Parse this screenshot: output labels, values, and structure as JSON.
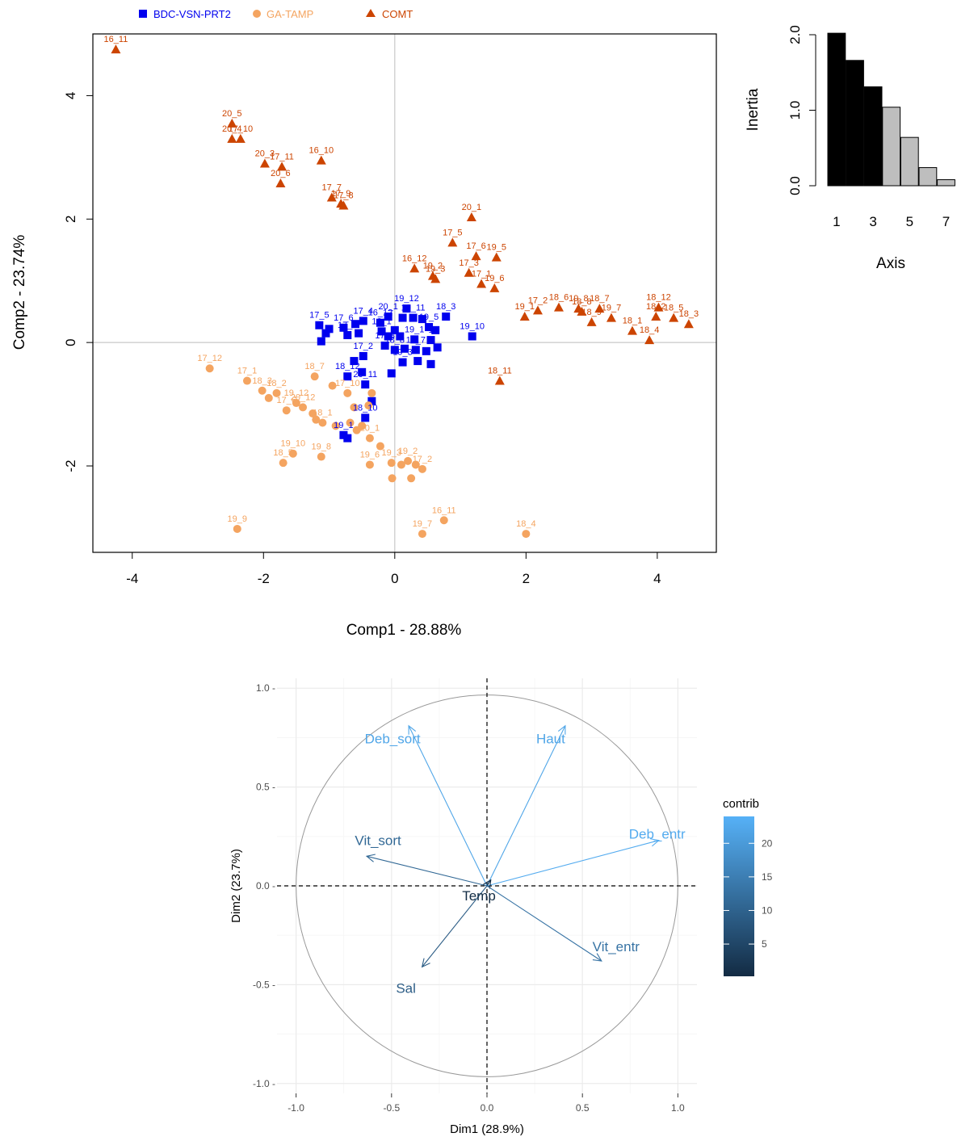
{
  "colors": {
    "BDC": "#0000ee",
    "GA": "#f4a460",
    "COMT": "#cc4400",
    "axis": "#000000",
    "refline": "#c8c8c8",
    "grid_major": "#ebebeb",
    "grid_minor": "#f5f5f5",
    "circle": "#999999",
    "scree_black": "#000000",
    "scree_grey": "#bebebe",
    "contrib_low": "#132b43",
    "contrib_high": "#56b1f7"
  },
  "chart_data": [
    {
      "id": "individuals",
      "type": "scatter",
      "title": "",
      "xlabel": "Comp1 - 28.88%",
      "ylabel": "Comp2 - 23.74%",
      "xlim": [
        -4.6,
        4.9
      ],
      "ylim": [
        -3.4,
        5.0
      ],
      "xticks": [
        -4,
        -2,
        0,
        2,
        4
      ],
      "yticks": [
        -2,
        0,
        2,
        4
      ],
      "xtick_labels": [
        "-4",
        "-2",
        "0",
        "2",
        "4"
      ],
      "ytick_labels": [
        "-2",
        "0",
        "2",
        "4"
      ],
      "legend": {
        "position": "top-left",
        "entries": [
          {
            "name": "BDC-VSN-PRT2",
            "marker": "square",
            "color_key": "BDC"
          },
          {
            "name": "GA-TAMP",
            "marker": "circle",
            "color_key": "GA"
          },
          {
            "name": "COMT",
            "marker": "triangle",
            "color_key": "COMT"
          }
        ]
      },
      "series": [
        {
          "name": "COMT",
          "marker": "triangle",
          "color_key": "COMT",
          "points": [
            {
              "x": -4.25,
              "y": 4.75,
              "label": "16_11"
            },
            {
              "x": -2.48,
              "y": 3.55,
              "label": "20_5"
            },
            {
              "x": -2.48,
              "y": 3.3,
              "label": "20_4"
            },
            {
              "x": -2.35,
              "y": 3.3,
              "label": "17_10"
            },
            {
              "x": -1.98,
              "y": 2.9,
              "label": "20_3"
            },
            {
              "x": -1.72,
              "y": 2.85,
              "label": "17_11"
            },
            {
              "x": -1.74,
              "y": 2.58,
              "label": "20_6"
            },
            {
              "x": -1.12,
              "y": 2.95,
              "label": "16_10"
            },
            {
              "x": -0.96,
              "y": 2.35,
              "label": "17_7"
            },
            {
              "x": -0.82,
              "y": 2.25,
              "label": "17_9"
            },
            {
              "x": -0.78,
              "y": 2.22,
              "label": "17_8"
            },
            {
              "x": 1.17,
              "y": 2.03,
              "label": "20_1"
            },
            {
              "x": 0.88,
              "y": 1.62,
              "label": "17_5"
            },
            {
              "x": 1.24,
              "y": 1.4,
              "label": "17_6"
            },
            {
              "x": 1.55,
              "y": 1.38,
              "label": "19_5"
            },
            {
              "x": 0.3,
              "y": 1.2,
              "label": "16_12"
            },
            {
              "x": 0.58,
              "y": 1.08,
              "label": "19_2"
            },
            {
              "x": 0.62,
              "y": 1.03,
              "label": "19_3"
            },
            {
              "x": 1.13,
              "y": 1.13,
              "label": "17_3"
            },
            {
              "x": 1.32,
              "y": 0.95,
              "label": "17_1"
            },
            {
              "x": 1.52,
              "y": 0.88,
              "label": "19_6"
            },
            {
              "x": 1.98,
              "y": 0.42,
              "label": "19_1"
            },
            {
              "x": 2.18,
              "y": 0.52,
              "label": "17_2"
            },
            {
              "x": 2.5,
              "y": 0.57,
              "label": "18_6"
            },
            {
              "x": 2.8,
              "y": 0.55,
              "label": "19_8"
            },
            {
              "x": 2.85,
              "y": 0.5,
              "label": "18_8"
            },
            {
              "x": 3.12,
              "y": 0.55,
              "label": "18_7"
            },
            {
              "x": 3.0,
              "y": 0.33,
              "label": "18_9"
            },
            {
              "x": 3.3,
              "y": 0.4,
              "label": "19_7"
            },
            {
              "x": 3.62,
              "y": 0.19,
              "label": "18_1"
            },
            {
              "x": 4.02,
              "y": 0.57,
              "label": "18_12"
            },
            {
              "x": 3.98,
              "y": 0.42,
              "label": "18_2"
            },
            {
              "x": 4.25,
              "y": 0.4,
              "label": "18_5"
            },
            {
              "x": 4.48,
              "y": 0.3,
              "label": "18_3"
            },
            {
              "x": 3.88,
              "y": 0.04,
              "label": "18_4"
            },
            {
              "x": 1.6,
              "y": -0.62,
              "label": "18_11"
            }
          ]
        },
        {
          "name": "BDC-VSN-PRT2",
          "marker": "square",
          "color_key": "BDC",
          "points": [
            {
              "x": 0.18,
              "y": 0.55,
              "label": "19_12"
            },
            {
              "x": -0.48,
              "y": 0.35,
              "label": "17_4"
            },
            {
              "x": -0.22,
              "y": 0.32,
              "label": "16_12"
            },
            {
              "x": -0.6,
              "y": 0.3,
              "label": ""
            },
            {
              "x": -1.15,
              "y": 0.28,
              "label": "17_5"
            },
            {
              "x": -0.78,
              "y": 0.24,
              "label": "17_6"
            },
            {
              "x": -1.0,
              "y": 0.22,
              "label": ""
            },
            {
              "x": -0.72,
              "y": 0.12,
              "label": "17_1"
            },
            {
              "x": -1.05,
              "y": 0.15,
              "label": ""
            },
            {
              "x": -1.12,
              "y": 0.02,
              "label": ""
            },
            {
              "x": -0.55,
              "y": 0.15,
              "label": ""
            },
            {
              "x": -0.1,
              "y": 0.42,
              "label": "20_1"
            },
            {
              "x": 0.12,
              "y": 0.4,
              "label": ""
            },
            {
              "x": 0.28,
              "y": 0.4,
              "label": "19_11"
            },
            {
              "x": 0.42,
              "y": 0.38,
              "label": ""
            },
            {
              "x": 0.78,
              "y": 0.42,
              "label": "18_3"
            },
            {
              "x": 0.52,
              "y": 0.25,
              "label": "19_5"
            },
            {
              "x": 0.62,
              "y": 0.2,
              "label": ""
            },
            {
              "x": -0.2,
              "y": 0.18,
              "label": "16_1"
            },
            {
              "x": 0.0,
              "y": 0.2,
              "label": ""
            },
            {
              "x": -0.1,
              "y": 0.1,
              "label": ""
            },
            {
              "x": 0.08,
              "y": 0.1,
              "label": ""
            },
            {
              "x": 0.3,
              "y": 0.05,
              "label": "19_1"
            },
            {
              "x": 0.55,
              "y": 0.04,
              "label": "1"
            },
            {
              "x": 1.18,
              "y": 0.1,
              "label": "19_10"
            },
            {
              "x": -0.15,
              "y": -0.05,
              "label": "17_3"
            },
            {
              "x": 0.0,
              "y": -0.12,
              "label": "18_8"
            },
            {
              "x": 0.15,
              "y": -0.1,
              "label": ""
            },
            {
              "x": 0.32,
              "y": -0.12,
              "label": "18_7"
            },
            {
              "x": 0.48,
              "y": -0.14,
              "label": ""
            },
            {
              "x": 0.65,
              "y": -0.08,
              "label": ""
            },
            {
              "x": -0.48,
              "y": -0.22,
              "label": "17_2"
            },
            {
              "x": -0.62,
              "y": -0.3,
              "label": ""
            },
            {
              "x": 0.12,
              "y": -0.32,
              "label": "19_3"
            },
            {
              "x": 0.35,
              "y": -0.3,
              "label": ""
            },
            {
              "x": 0.55,
              "y": -0.35,
              "label": ""
            },
            {
              "x": -0.05,
              "y": -0.5,
              "label": ""
            },
            {
              "x": -0.72,
              "y": -0.55,
              "label": "18_12"
            },
            {
              "x": -0.5,
              "y": -0.48,
              "label": ""
            },
            {
              "x": -0.45,
              "y": -0.68,
              "label": "20_11"
            },
            {
              "x": -0.35,
              "y": -0.95,
              "label": ""
            },
            {
              "x": -0.45,
              "y": -1.22,
              "label": "18_10"
            },
            {
              "x": -0.78,
              "y": -1.5,
              "label": "19_1"
            },
            {
              "x": -0.72,
              "y": -1.55,
              "label": ""
            }
          ]
        },
        {
          "name": "GA-TAMP",
          "marker": "circle",
          "color_key": "GA",
          "points": [
            {
              "x": -2.82,
              "y": -0.42,
              "label": "17_12"
            },
            {
              "x": -2.25,
              "y": -0.62,
              "label": "17_1"
            },
            {
              "x": -2.02,
              "y": -0.78,
              "label": "18_3"
            },
            {
              "x": -1.92,
              "y": -0.9,
              "label": ""
            },
            {
              "x": -1.8,
              "y": -0.82,
              "label": "18_2"
            },
            {
              "x": -1.65,
              "y": -1.1,
              "label": "17_6"
            },
            {
              "x": -1.5,
              "y": -0.98,
              "label": "19_12"
            },
            {
              "x": -1.25,
              "y": -1.15,
              "label": ""
            },
            {
              "x": -1.4,
              "y": -1.05,
              "label": "20_12"
            },
            {
              "x": -1.2,
              "y": -1.25,
              "label": ""
            },
            {
              "x": -1.1,
              "y": -1.3,
              "label": "18_1"
            },
            {
              "x": -0.9,
              "y": -1.35,
              "label": ""
            },
            {
              "x": -1.22,
              "y": -0.55,
              "label": "18_7"
            },
            {
              "x": -0.95,
              "y": -0.7,
              "label": ""
            },
            {
              "x": -0.72,
              "y": -0.82,
              "label": "17_10"
            },
            {
              "x": -0.35,
              "y": -0.82,
              "label": ""
            },
            {
              "x": -0.62,
              "y": -1.05,
              "label": ""
            },
            {
              "x": -0.4,
              "y": -1.02,
              "label": ""
            },
            {
              "x": -0.68,
              "y": -1.3,
              "label": ""
            },
            {
              "x": -0.58,
              "y": -1.42,
              "label": ""
            },
            {
              "x": -0.5,
              "y": -1.35,
              "label": ""
            },
            {
              "x": -0.38,
              "y": -1.55,
              "label": "20_1"
            },
            {
              "x": -0.22,
              "y": -1.68,
              "label": ""
            },
            {
              "x": -1.7,
              "y": -1.95,
              "label": "18_5"
            },
            {
              "x": -1.55,
              "y": -1.8,
              "label": "19_10"
            },
            {
              "x": -1.12,
              "y": -1.85,
              "label": "19_8"
            },
            {
              "x": -0.38,
              "y": -1.98,
              "label": "19_6"
            },
            {
              "x": -0.05,
              "y": -1.95,
              "label": "19_3"
            },
            {
              "x": 0.1,
              "y": -1.98,
              "label": ""
            },
            {
              "x": 0.2,
              "y": -1.92,
              "label": "19_2"
            },
            {
              "x": 0.32,
              "y": -1.98,
              "label": ""
            },
            {
              "x": 0.42,
              "y": -2.05,
              "label": "17_2"
            },
            {
              "x": 0.25,
              "y": -2.2,
              "label": ""
            },
            {
              "x": -0.04,
              "y": -2.2,
              "label": ""
            },
            {
              "x": -2.4,
              "y": -3.02,
              "label": "19_9"
            },
            {
              "x": 0.42,
              "y": -3.1,
              "label": "19_7"
            },
            {
              "x": 0.75,
              "y": -2.88,
              "label": "16_11"
            },
            {
              "x": 2.0,
              "y": -3.1,
              "label": "18_4"
            }
          ]
        }
      ]
    },
    {
      "id": "scree",
      "type": "bar",
      "title": "",
      "xlabel": "Axis",
      "ylabel": "Inertia",
      "categories": [
        "1",
        "2",
        "3",
        "4",
        "5",
        "6",
        "7"
      ],
      "values": [
        2.02,
        1.66,
        1.31,
        1.04,
        0.64,
        0.24,
        0.08
      ],
      "highlight": [
        "scree_black",
        "scree_black",
        "scree_black",
        "scree_grey",
        "scree_grey",
        "scree_grey",
        "scree_grey"
      ],
      "ylim": [
        0,
        2.0
      ],
      "yticks": [
        0.0,
        1.0,
        2.0
      ],
      "ytick_labels": [
        "0.0",
        "1.0",
        "2.0"
      ],
      "xtick_labels": [
        "1",
        "3",
        "5",
        "7"
      ]
    },
    {
      "id": "variables",
      "type": "scatter",
      "title": "",
      "xlabel": "Dim1 (28.9%)",
      "ylabel": "Dim2 (23.7%)",
      "xlim": [
        -1.1,
        1.1
      ],
      "ylim": [
        -1.05,
        1.05
      ],
      "xticks": [
        -1.0,
        -0.5,
        0.0,
        0.5,
        1.0
      ],
      "yticks": [
        -1.0,
        -0.5,
        0.0,
        0.5,
        1.0
      ],
      "xtick_labels": [
        "-1.0",
        "-0.5",
        "0.0",
        "0.5",
        "1.0"
      ],
      "ytick_labels": [
        "-1.0 -",
        "-0.5 -",
        "0.0 -",
        "0.5 -",
        "1.0 -"
      ],
      "grid": true,
      "legend": {
        "title": "contrib",
        "position": "right",
        "ticks": [
          5,
          10,
          15,
          20
        ],
        "tick_labels": [
          "5",
          "10",
          "15",
          "20"
        ],
        "range": [
          0.2,
          24
        ]
      },
      "vectors": [
        {
          "name": "Deb_sort",
          "x": -0.41,
          "y": 0.81,
          "contrib": 22
        },
        {
          "name": "Haut",
          "x": 0.41,
          "y": 0.81,
          "contrib": 22
        },
        {
          "name": "Deb_entr",
          "x": 0.9,
          "y": 0.23,
          "contrib": 23
        },
        {
          "name": "Vit_sort",
          "x": -0.63,
          "y": 0.15,
          "contrib": 11
        },
        {
          "name": "Temp",
          "x": 0.02,
          "y": 0.03,
          "contrib": 0.3
        },
        {
          "name": "Vit_entr",
          "x": 0.6,
          "y": -0.38,
          "contrib": 13
        },
        {
          "name": "Sal",
          "x": -0.34,
          "y": -0.41,
          "contrib": 9
        }
      ]
    }
  ]
}
